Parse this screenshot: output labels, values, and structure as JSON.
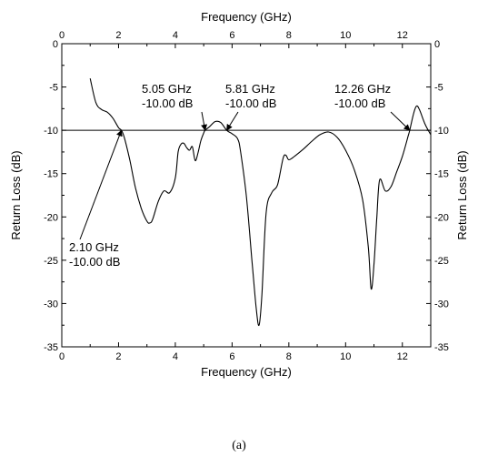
{
  "chart_data": {
    "type": "line",
    "xlabel": "Frequency (GHz)",
    "x2label": "Frequency (GHz)",
    "ylabel": "Return Loss (dB)",
    "y2label": "Return Loss (dB)",
    "xlim": [
      0,
      13
    ],
    "ylim": [
      -35,
      0
    ],
    "xticks": [
      "0",
      "2",
      "4",
      "6",
      "8",
      "10",
      "12"
    ],
    "yticks": [
      "0",
      "-5",
      "-10",
      "-15",
      "-20",
      "-25",
      "-30",
      "-35"
    ],
    "reference_line": -10,
    "series": [
      {
        "x": [
          1.0,
          1.2,
          1.4,
          1.6,
          1.8,
          2.0,
          2.1,
          2.2,
          2.4,
          2.6,
          2.8,
          3.0,
          3.1,
          3.2,
          3.4,
          3.6,
          3.8,
          4.0,
          4.1,
          4.2,
          4.3,
          4.4,
          4.5,
          4.6,
          4.7,
          4.8,
          4.9,
          5.0,
          5.05,
          5.2,
          5.4,
          5.6,
          5.81,
          6.0,
          6.2,
          6.3,
          6.5,
          6.7,
          6.85,
          6.95,
          7.05,
          7.2,
          7.4,
          7.6,
          7.8,
          7.9,
          8.0,
          8.2,
          8.5,
          8.8,
          9.1,
          9.4,
          9.7,
          10.0,
          10.3,
          10.6,
          10.8,
          10.9,
          11.0,
          11.1,
          11.2,
          11.4,
          11.6,
          11.8,
          12.0,
          12.2,
          12.26,
          12.4,
          12.5,
          12.6,
          12.8,
          13.0
        ],
        "y": [
          -4.0,
          -6.8,
          -7.6,
          -7.9,
          -8.6,
          -9.7,
          -10.0,
          -10.8,
          -13.5,
          -16.7,
          -19.0,
          -20.5,
          -20.7,
          -20.3,
          -18.2,
          -17.0,
          -17.2,
          -15.5,
          -12.5,
          -11.6,
          -11.5,
          -12.0,
          -12.3,
          -11.9,
          -13.5,
          -12.6,
          -11.2,
          -10.3,
          -10.0,
          -9.6,
          -9.0,
          -9.1,
          -10.0,
          -10.4,
          -11.0,
          -12.5,
          -17.5,
          -25.0,
          -30.5,
          -32.5,
          -29.0,
          -19.5,
          -17.2,
          -16.3,
          -13.2,
          -12.9,
          -13.4,
          -13.0,
          -12.2,
          -11.3,
          -10.5,
          -10.2,
          -10.8,
          -12.3,
          -14.5,
          -18.0,
          -23.5,
          -28.3,
          -25.5,
          -20.0,
          -15.7,
          -17.0,
          -16.5,
          -14.8,
          -13.0,
          -10.7,
          -10.0,
          -8.0,
          -7.2,
          -7.6,
          -9.3,
          -10.5
        ]
      }
    ],
    "annotations": [
      {
        "lines": [
          "2.10 GHz",
          "-10.00 dB"
        ],
        "x": 2.1,
        "y": -10.0
      },
      {
        "lines": [
          "5.05 GHz",
          "-10.00 dB"
        ],
        "x": 5.05,
        "y": -10.0
      },
      {
        "lines": [
          "5.81 GHz",
          "-10.00 dB"
        ],
        "x": 5.81,
        "y": -10.0
      },
      {
        "lines": [
          "12.26 GHz",
          "-10.00 dB"
        ],
        "x": 12.26,
        "y": -10.0
      }
    ]
  },
  "caption": "(a)"
}
